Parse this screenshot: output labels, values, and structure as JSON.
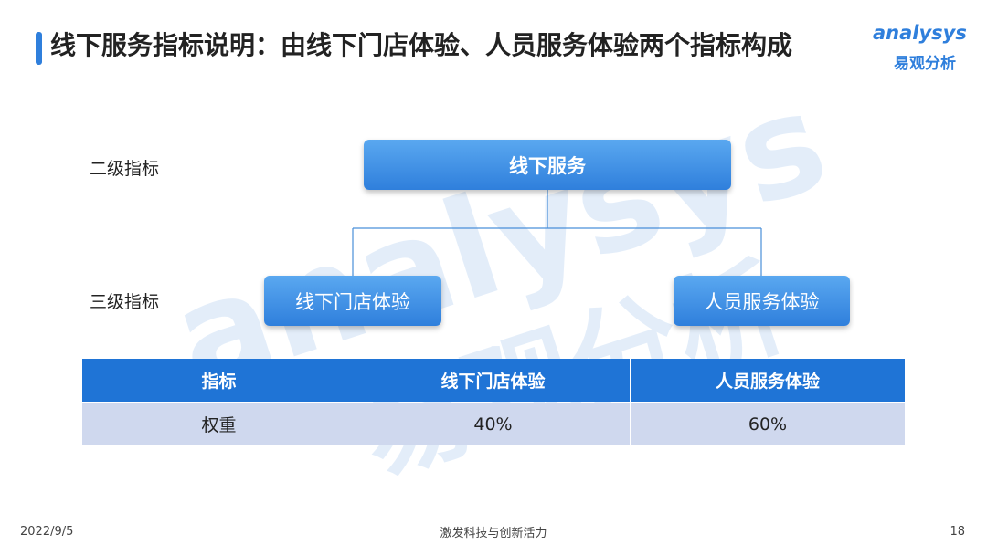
{
  "header": {
    "title": "线下服务指标说明：由线下门店体验、人员服务体验两个指标构成"
  },
  "logo": {
    "brand": "analysys",
    "name": "易观分析"
  },
  "levels": [
    "二级指标",
    "三级指标"
  ],
  "nodes": [
    {
      "label": "线下服务"
    },
    {
      "label": "线下门店体验"
    },
    {
      "label": "人员服务体验"
    }
  ],
  "table": {
    "header": [
      "指标",
      "线下门店体验",
      "人员服务体验"
    ],
    "rows": [
      [
        "权重",
        "40%",
        "60%"
      ]
    ]
  },
  "footer": {
    "date": "2022/9/5",
    "slogan": "激发科技与创新活力",
    "page": "18"
  }
}
